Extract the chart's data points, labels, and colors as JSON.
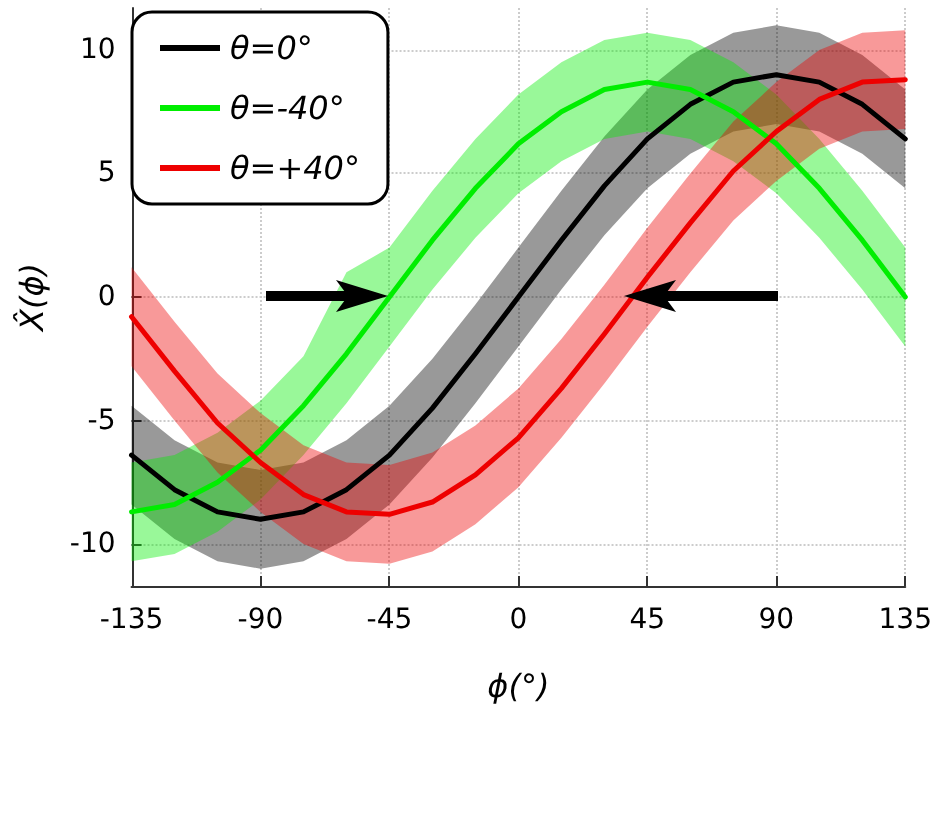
{
  "chart_data": {
    "type": "line",
    "xlabel": "ϕ(°)",
    "ylabel": "X̂(ϕ)",
    "x": [
      -135,
      -120,
      -105,
      -90,
      -75,
      -60,
      -45,
      -30,
      -15,
      0,
      15,
      30,
      45,
      60,
      75,
      90,
      105,
      120,
      135
    ],
    "xlim": [
      -135,
      135
    ],
    "xticks": [
      -135,
      -90,
      -45,
      0,
      45,
      90,
      135
    ],
    "ylim": [
      -11.7,
      11.7
    ],
    "yticks": [
      -10,
      -5,
      0,
      5,
      10
    ],
    "grid": true,
    "legend": "top left",
    "marker": "none",
    "line_style": "solid",
    "series": [
      {
        "name": "θ=0°",
        "color": "#000000",
        "values": [
          -6.4,
          -7.8,
          -8.7,
          -9.0,
          -8.7,
          -7.8,
          -6.4,
          -4.5,
          -2.3,
          0,
          2.3,
          4.5,
          6.4,
          7.8,
          8.7,
          9.0,
          8.7,
          7.8,
          6.4
        ],
        "lower": [
          -8.4,
          -9.8,
          -10.7,
          -11.0,
          -10.7,
          -9.8,
          -8.4,
          -6.5,
          -4.3,
          -2,
          0.3,
          2.5,
          4.4,
          5.8,
          6.7,
          7.0,
          6.7,
          5.8,
          4.4
        ],
        "upper": [
          -4.4,
          -5.8,
          -6.7,
          -7.0,
          -6.7,
          -5.8,
          -4.4,
          -2.5,
          -0.3,
          2,
          4.3,
          6.5,
          8.4,
          9.8,
          10.7,
          11.0,
          10.7,
          9.8,
          8.4
        ]
      },
      {
        "name": "θ=-40°",
        "color": "#00ee00",
        "values": [
          -8.7,
          -8.4,
          -7.5,
          -6.2,
          -4.4,
          -2.3,
          0,
          2.3,
          4.4,
          6.2,
          7.5,
          8.4,
          8.7,
          8.4,
          7.5,
          6.2,
          4.4,
          2.3,
          0
        ],
        "lower": [
          -10.7,
          -10.4,
          -9.5,
          -8.2,
          -6.4,
          -4.3,
          -2,
          0.3,
          2.4,
          4.2,
          5.5,
          6.4,
          6.7,
          6.4,
          5.5,
          4.2,
          2.4,
          0.3,
          -2
        ],
        "upper": [
          -6.7,
          -6.4,
          -5.5,
          -4.2,
          -2.4,
          1.0,
          2,
          4.3,
          6.4,
          8.2,
          9.5,
          10.4,
          10.7,
          10.4,
          9.5,
          8.2,
          6.4,
          4.3,
          2
        ]
      },
      {
        "name": "θ=+40°",
        "color": "#ee0000",
        "values": [
          -0.8,
          -3.0,
          -5.1,
          -6.7,
          -8.0,
          -8.7,
          -8.8,
          -8.3,
          -7.2,
          -5.7,
          -3.7,
          -1.5,
          0.8,
          3.0,
          5.1,
          6.7,
          8.0,
          8.7,
          8.8
        ],
        "lower": [
          -2.8,
          -5.0,
          -7.1,
          -8.7,
          -10.0,
          -10.7,
          -10.8,
          -10.3,
          -9.2,
          -7.7,
          -5.7,
          -3.5,
          -1.2,
          1.0,
          3.1,
          4.7,
          6.0,
          6.7,
          6.8
        ],
        "upper": [
          1.2,
          -1.0,
          -3.1,
          -4.7,
          -6.0,
          -6.7,
          -6.8,
          -6.3,
          -5.2,
          -3.7,
          -1.7,
          0.5,
          2.8,
          5.0,
          7.1,
          8.7,
          10.0,
          10.7,
          10.8
        ]
      }
    ]
  }
}
